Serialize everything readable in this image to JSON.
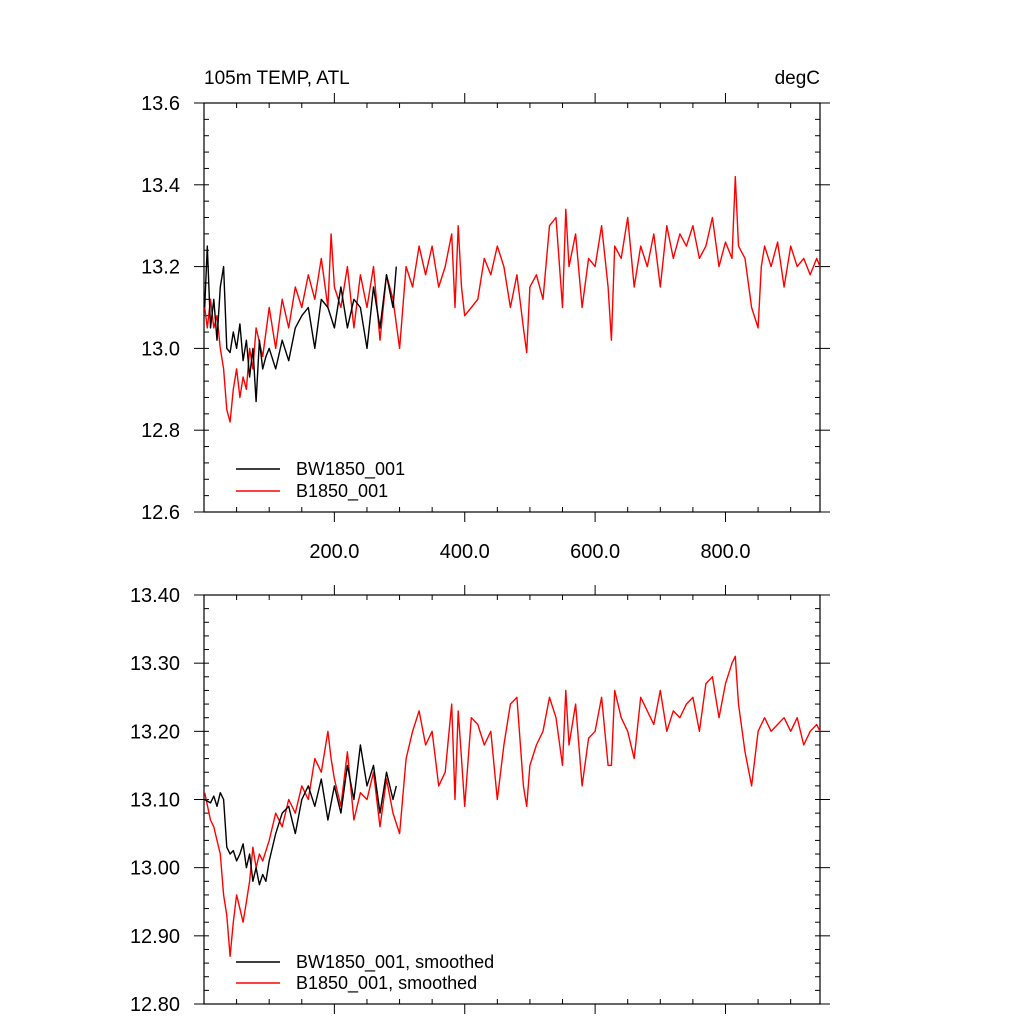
{
  "chart_data": [
    {
      "type": "line",
      "title_left": "105m TEMP, ATL",
      "title_right": "degC",
      "xlim": [
        0,
        945
      ],
      "ylim": [
        12.6,
        13.6
      ],
      "x_major_ticks": [
        200,
        400,
        600,
        800
      ],
      "x_tick_labels": [
        "200.0",
        "400.0",
        "600.0",
        "800.0"
      ],
      "y_major_ticks": [
        12.6,
        12.8,
        13.0,
        13.2,
        13.4,
        13.6
      ],
      "y_tick_labels": [
        "12.6",
        "12.8",
        "13.0",
        "13.2",
        "13.4",
        "13.6"
      ],
      "legend_position": "bottom-left",
      "series": [
        {
          "name": "BW1850_001",
          "color": "#000000",
          "x": [
            1,
            5,
            10,
            15,
            20,
            25,
            30,
            35,
            40,
            45,
            50,
            55,
            60,
            65,
            70,
            75,
            80,
            85,
            90,
            95,
            100,
            110,
            120,
            130,
            140,
            150,
            160,
            170,
            180,
            190,
            200,
            210,
            220,
            230,
            240,
            250,
            260,
            270,
            280,
            290,
            295
          ],
          "values": [
            13.1,
            13.25,
            13.05,
            13.12,
            13.02,
            13.15,
            13.2,
            13.0,
            12.99,
            13.04,
            13.0,
            13.06,
            12.97,
            13.02,
            12.93,
            13.0,
            12.87,
            13.02,
            12.95,
            12.98,
            13.0,
            12.95,
            13.02,
            12.97,
            13.05,
            13.08,
            13.1,
            13.0,
            13.12,
            13.1,
            13.05,
            13.15,
            13.05,
            13.12,
            13.1,
            13.0,
            13.15,
            13.05,
            13.18,
            13.1,
            13.2
          ]
        },
        {
          "name": "B1850_001",
          "color": "#ff0000",
          "x": [
            1,
            5,
            10,
            15,
            20,
            25,
            30,
            35,
            40,
            45,
            50,
            55,
            60,
            65,
            70,
            75,
            80,
            90,
            100,
            110,
            120,
            130,
            140,
            150,
            160,
            170,
            180,
            190,
            195,
            200,
            210,
            220,
            230,
            240,
            250,
            260,
            270,
            280,
            290,
            300,
            310,
            320,
            330,
            340,
            350,
            360,
            370,
            380,
            385,
            390,
            395,
            400,
            410,
            420,
            430,
            440,
            450,
            460,
            470,
            480,
            490,
            495,
            500,
            510,
            520,
            530,
            540,
            550,
            555,
            560,
            570,
            580,
            590,
            600,
            610,
            620,
            625,
            630,
            640,
            650,
            660,
            670,
            680,
            690,
            700,
            710,
            720,
            730,
            740,
            750,
            760,
            770,
            780,
            790,
            800,
            810,
            815,
            820,
            830,
            840,
            850,
            855,
            860,
            870,
            880,
            890,
            900,
            910,
            920,
            930,
            940,
            945
          ],
          "values": [
            13.1,
            13.05,
            13.12,
            13.05,
            13.08,
            13.0,
            12.95,
            12.85,
            12.82,
            12.9,
            12.95,
            12.88,
            12.93,
            12.9,
            13.0,
            12.95,
            13.05,
            12.98,
            13.1,
            13.0,
            13.12,
            13.05,
            13.15,
            13.1,
            13.18,
            13.12,
            13.22,
            13.1,
            13.28,
            13.15,
            13.1,
            13.2,
            13.05,
            13.18,
            13.1,
            13.2,
            13.02,
            13.18,
            13.12,
            13.0,
            13.2,
            13.15,
            13.25,
            13.18,
            13.25,
            13.15,
            13.2,
            13.28,
            13.1,
            13.3,
            13.15,
            13.08,
            13.1,
            13.12,
            13.22,
            13.18,
            13.25,
            13.2,
            13.1,
            13.18,
            13.05,
            12.99,
            13.15,
            13.18,
            13.12,
            13.3,
            13.32,
            13.1,
            13.34,
            13.2,
            13.28,
            13.1,
            13.22,
            13.2,
            13.3,
            13.15,
            13.02,
            13.25,
            13.22,
            13.32,
            13.15,
            13.25,
            13.2,
            13.28,
            13.15,
            13.3,
            13.22,
            13.28,
            13.25,
            13.3,
            13.22,
            13.25,
            13.32,
            13.2,
            13.26,
            13.22,
            13.42,
            13.25,
            13.22,
            13.1,
            13.05,
            13.2,
            13.25,
            13.2,
            13.26,
            13.15,
            13.25,
            13.2,
            13.22,
            13.18,
            13.22,
            13.2
          ]
        }
      ]
    },
    {
      "type": "line",
      "xlim": [
        0,
        945
      ],
      "ylim": [
        12.8,
        13.4
      ],
      "x_major_ticks": [
        200,
        400,
        600,
        800
      ],
      "y_major_ticks": [
        12.8,
        12.9,
        13.0,
        13.1,
        13.2,
        13.3,
        13.4
      ],
      "y_tick_labels": [
        "12.80",
        "12.90",
        "13.00",
        "13.10",
        "13.20",
        "13.30",
        "13.40"
      ],
      "legend_position": "bottom-left",
      "series": [
        {
          "name": "BW1850_001, smoothed",
          "color": "#000000",
          "x": [
            1,
            10,
            15,
            20,
            25,
            30,
            35,
            40,
            45,
            50,
            55,
            60,
            65,
            70,
            75,
            80,
            85,
            90,
            95,
            100,
            110,
            120,
            130,
            140,
            150,
            160,
            170,
            180,
            190,
            200,
            210,
            220,
            230,
            240,
            250,
            260,
            270,
            280,
            290,
            295
          ],
          "values": [
            13.1,
            13.095,
            13.105,
            13.09,
            13.11,
            13.1,
            13.03,
            13.02,
            13.025,
            13.01,
            13.02,
            13.035,
            13.0,
            13.02,
            12.98,
            13.0,
            12.975,
            12.99,
            12.98,
            13.01,
            13.05,
            13.08,
            13.09,
            13.05,
            13.1,
            13.12,
            13.09,
            13.13,
            13.07,
            13.12,
            13.08,
            13.15,
            13.1,
            13.18,
            13.12,
            13.15,
            13.08,
            13.14,
            13.1,
            13.12
          ]
        },
        {
          "name": "B1850_001, smoothed",
          "color": "#ff0000",
          "x": [
            1,
            10,
            15,
            20,
            25,
            30,
            35,
            40,
            45,
            50,
            55,
            60,
            65,
            70,
            75,
            80,
            85,
            90,
            100,
            110,
            120,
            130,
            140,
            150,
            160,
            170,
            180,
            190,
            195,
            200,
            210,
            220,
            230,
            240,
            250,
            260,
            270,
            280,
            290,
            300,
            310,
            320,
            330,
            340,
            350,
            360,
            370,
            380,
            385,
            390,
            395,
            400,
            410,
            420,
            430,
            440,
            450,
            460,
            470,
            480,
            490,
            495,
            500,
            510,
            520,
            530,
            540,
            550,
            555,
            560,
            570,
            580,
            590,
            600,
            610,
            620,
            625,
            630,
            640,
            650,
            660,
            670,
            680,
            690,
            700,
            710,
            720,
            730,
            740,
            750,
            760,
            770,
            780,
            790,
            800,
            810,
            815,
            820,
            830,
            840,
            850,
            855,
            860,
            870,
            880,
            890,
            900,
            910,
            920,
            930,
            940,
            945
          ],
          "values": [
            13.11,
            13.07,
            13.06,
            13.04,
            13.02,
            12.96,
            12.93,
            12.87,
            12.92,
            12.96,
            12.94,
            12.92,
            12.95,
            12.98,
            13.03,
            13.0,
            13.02,
            13.01,
            13.04,
            13.08,
            13.06,
            13.1,
            13.08,
            13.12,
            13.1,
            13.16,
            13.14,
            13.2,
            13.16,
            13.13,
            13.09,
            13.17,
            13.07,
            13.11,
            13.1,
            13.14,
            13.06,
            13.13,
            13.08,
            13.05,
            13.16,
            13.2,
            13.23,
            13.18,
            13.2,
            13.12,
            13.14,
            13.24,
            13.1,
            13.23,
            13.16,
            13.09,
            13.22,
            13.21,
            13.18,
            13.2,
            13.1,
            13.18,
            13.24,
            13.25,
            13.12,
            13.09,
            13.15,
            13.18,
            13.2,
            13.25,
            13.22,
            13.15,
            13.26,
            13.18,
            13.24,
            13.12,
            13.19,
            13.2,
            13.25,
            13.15,
            13.15,
            13.26,
            13.22,
            13.2,
            13.16,
            13.25,
            13.23,
            13.21,
            13.26,
            13.2,
            13.23,
            13.22,
            13.24,
            13.25,
            13.2,
            13.27,
            13.28,
            13.22,
            13.27,
            13.3,
            13.31,
            13.24,
            13.17,
            13.12,
            13.2,
            13.21,
            13.22,
            13.2,
            13.21,
            13.22,
            13.2,
            13.22,
            13.18,
            13.2,
            13.21,
            13.2
          ]
        }
      ]
    }
  ]
}
